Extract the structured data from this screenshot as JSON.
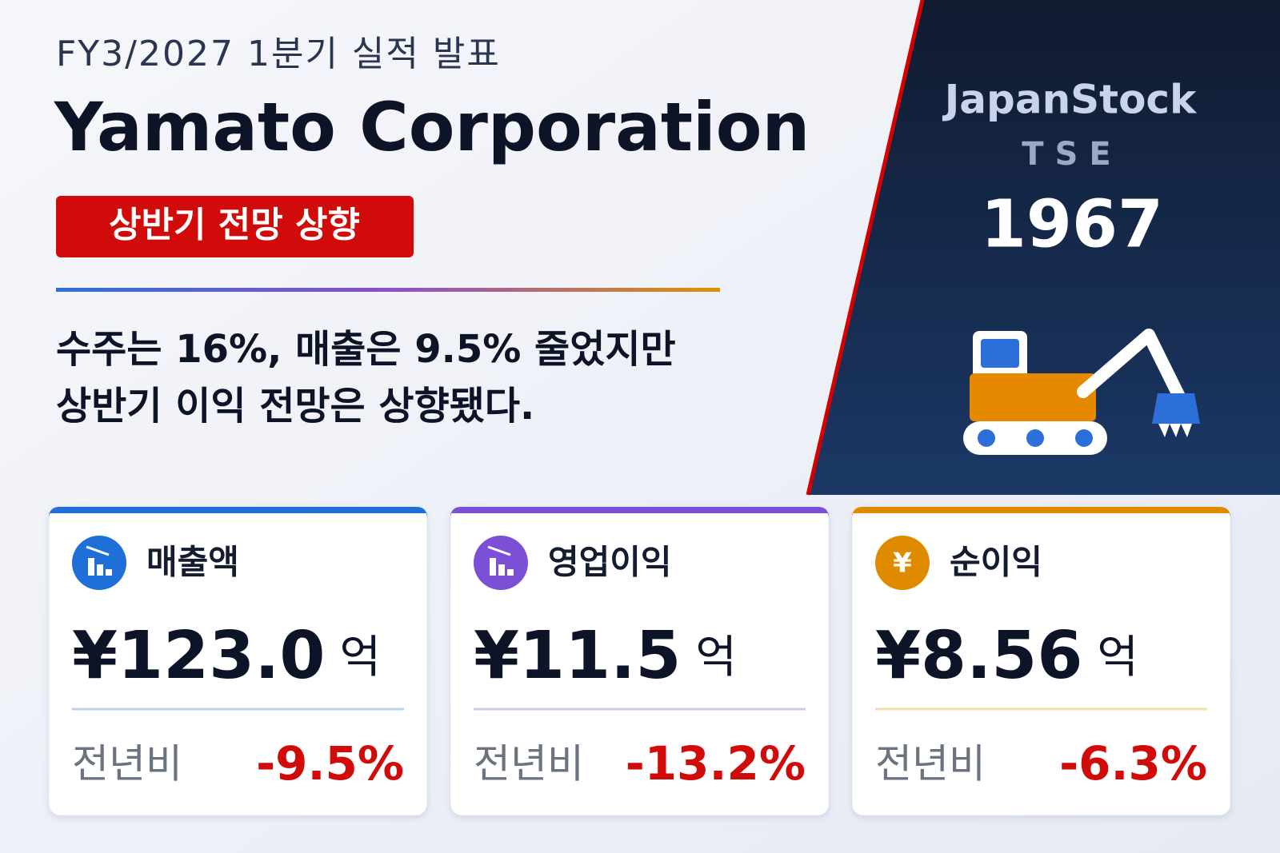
{
  "header": {
    "subtitle": "FY3/2027 1분기 실적 발표",
    "title": "Yamato Corporation",
    "badge": "상반기 전망 상향"
  },
  "summary": [
    "수주는 16%, 매출은 9.5% 줄었지만",
    "상반기 이익 전망은 상향됐다."
  ],
  "ticker": {
    "brand": "JapanStock",
    "exchange": "TSE",
    "code": "1967"
  },
  "cards": [
    {
      "label": "매출액",
      "value": "¥123.0",
      "unit": "억",
      "change_label": "전년비",
      "change": "-9.5%",
      "color": "#1f6fd8",
      "divider": "#b9d3ec"
    },
    {
      "label": "영업이익",
      "value": "¥11.5",
      "unit": "억",
      "change_label": "전년비",
      "change": "-13.2%",
      "color": "#7b4fd6",
      "divider": "#d4c9ee"
    },
    {
      "label": "순이익",
      "value": "¥8.56",
      "unit": "억",
      "change_label": "전년비",
      "change": "-6.3%",
      "color": "#e08a00",
      "icon": "¥",
      "divider": "#f1dea9"
    }
  ]
}
